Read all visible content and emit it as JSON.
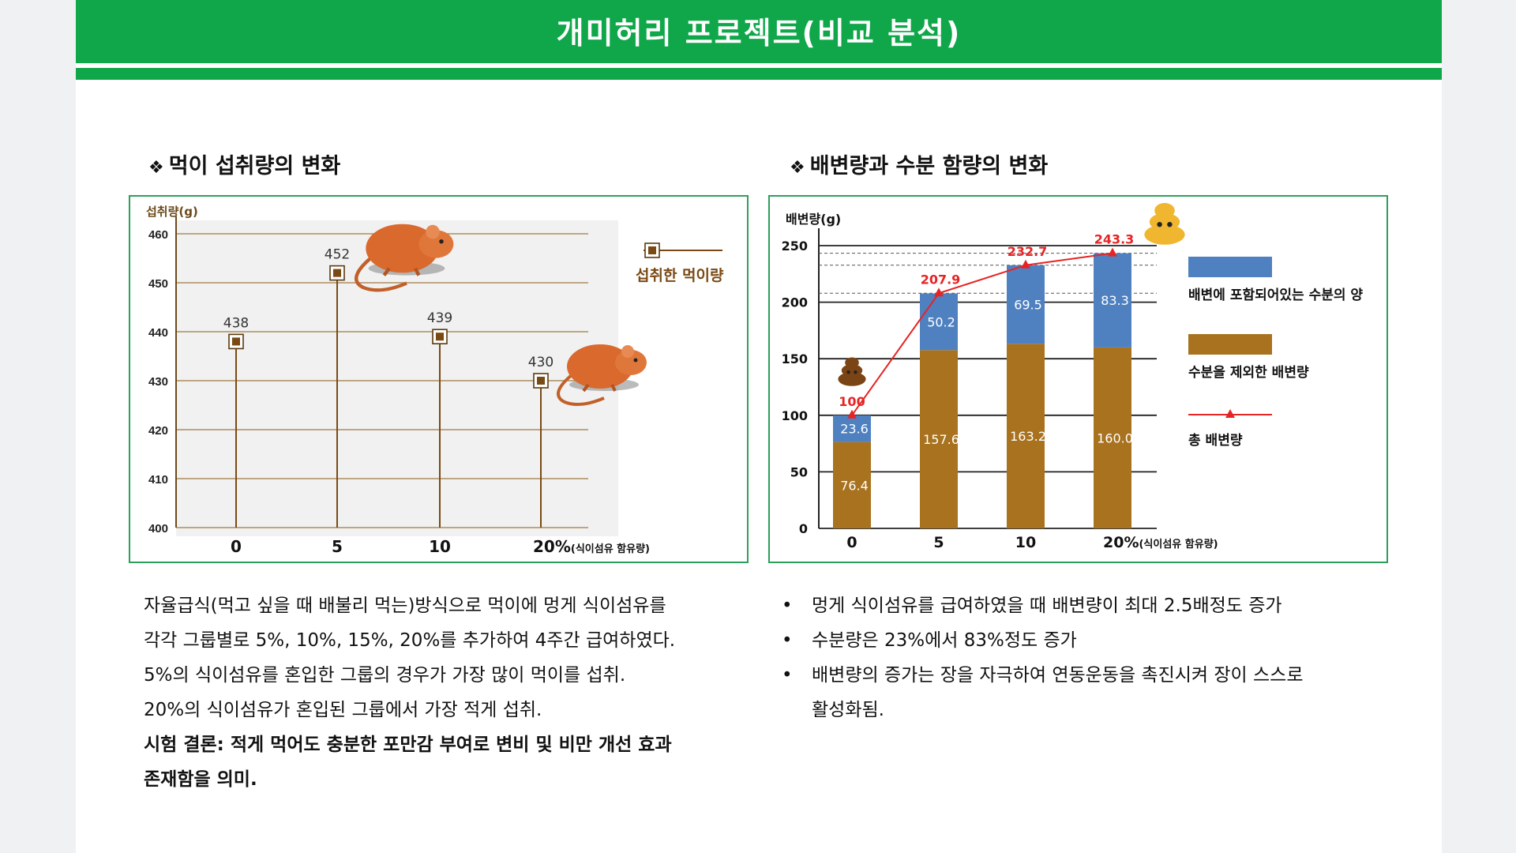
{
  "header": {
    "title": "개미허리 프로젝트(비교 분석)",
    "accent_color": "#0fa749"
  },
  "left": {
    "section_title": "먹이 섭취량의 변화",
    "bullet_symbol": "❖",
    "paragraph": [
      "자율급식(먹고 싶을 때 배불리 먹는)방식으로 먹이에 멍게 식이섬유를",
      "각각 그룹별로 5%, 10%, 15%, 20%를 추가하여 4주간 급여하였다.",
      "5%의 식이섬유를 혼입한 그룹의 경우가 가장 많이 먹이를 섭취.",
      "20%의 식이섬유가 혼입된 그룹에서 가장 적게 섭취."
    ],
    "conclusion": [
      "시험 결론: 적게 먹어도 충분한 포만감 부여로 변비 및 비만 개선 효과",
      "존재함을 의미."
    ]
  },
  "right": {
    "section_title": "배변량과 수분 함량의 변화",
    "bullet_symbol": "❖",
    "bullets": [
      "멍게 식이섬유를 급여하였을 때 배변량이 최대 2.5배정도 증가",
      "수분량은 23%에서 83%정도 증가",
      "배변량의 증가는 장을 자극하여 연동운동을 촉진시켜 장이 스스로",
      "활성화됨."
    ]
  },
  "chart_data": [
    {
      "type": "scatter",
      "ylabel": "섭취량(g)",
      "ylim": [
        400,
        460
      ],
      "yticks": [
        400,
        410,
        420,
        430,
        440,
        450,
        460
      ],
      "categories": [
        "0",
        "5",
        "10",
        "20%"
      ],
      "x_suffix": "(식이섬유 함유량)",
      "series": [
        {
          "name": "섭취한 먹이량",
          "values": [
            438,
            452,
            439,
            430
          ]
        }
      ],
      "data_labels": [
        "438",
        "452",
        "439",
        "430"
      ],
      "legend": "top-right",
      "grid": true,
      "color": "#7a4a14"
    },
    {
      "type": "bar",
      "ylabel": "배변량(g)",
      "ylim": [
        0,
        250
      ],
      "yticks": [
        0,
        50,
        100,
        150,
        200,
        250
      ],
      "categories": [
        "0",
        "5",
        "10",
        "20%"
      ],
      "x_suffix": "(식이섬유 함유량)",
      "stacked": true,
      "series": [
        {
          "name": "수분을 제외한 배변량",
          "values": [
            76.4,
            157.6,
            163.2,
            160.0
          ],
          "labels": [
            "76.4",
            "157.6",
            "163.2",
            "160.0"
          ],
          "color": "#a8721f"
        },
        {
          "name": "배변에 포함되어있는 수분의 양",
          "values": [
            23.6,
            50.2,
            69.5,
            83.3
          ],
          "labels": [
            "23.6",
            "50.2",
            "69.5",
            "83.3"
          ],
          "color": "#4f81c1"
        }
      ],
      "line": {
        "name": "총 배변량",
        "values": [
          100,
          207.9,
          232.7,
          243.3
        ],
        "labels": [
          "100",
          "207.9",
          "232.7",
          "243.3"
        ],
        "color": "#e62424"
      },
      "legend": "right",
      "grid": true
    }
  ]
}
